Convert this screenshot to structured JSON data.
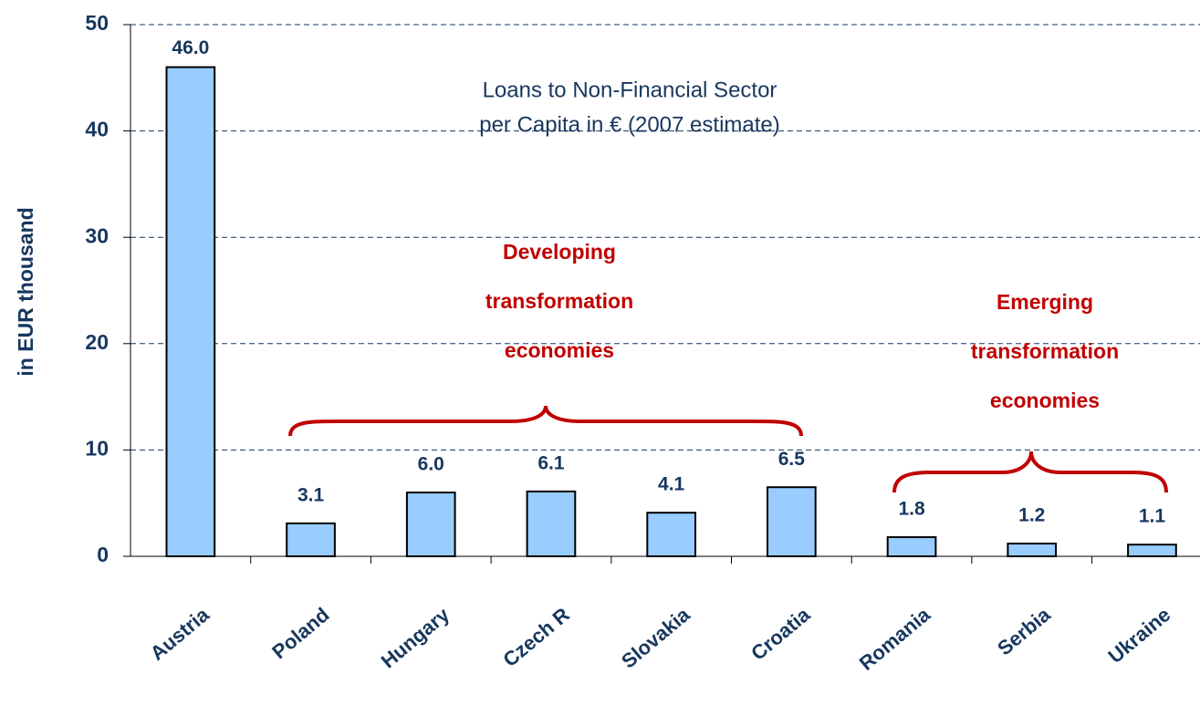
{
  "chart_data": {
    "type": "bar",
    "title": [
      "Loans to Non-Financial Sector",
      "per Capita in € (2007 estimate)"
    ],
    "y_label": "in EUR thousand",
    "categories": [
      "Austria",
      "Poland",
      "Hungary",
      "Czech R",
      "Slovakia",
      "Croatia",
      "Romania",
      "Serbia",
      "Ukraine"
    ],
    "values": [
      46.0,
      3.1,
      6.0,
      6.1,
      4.1,
      6.5,
      1.8,
      1.2,
      1.1
    ],
    "value_labels": [
      "46.0",
      "3.1",
      "6.0",
      "6.1",
      "4.1",
      "6.5",
      "1.8",
      "1.2",
      "1.1"
    ],
    "color": "#99ccff",
    "ylim": [
      0,
      50
    ],
    "yticks": [
      0,
      10,
      20,
      30,
      40,
      50
    ],
    "grid": true,
    "annotations": [
      {
        "lines": [
          "Developing",
          "transformation",
          "economies"
        ]
      },
      {
        "lines": [
          "Emerging",
          "transformation",
          "economies"
        ]
      }
    ]
  }
}
